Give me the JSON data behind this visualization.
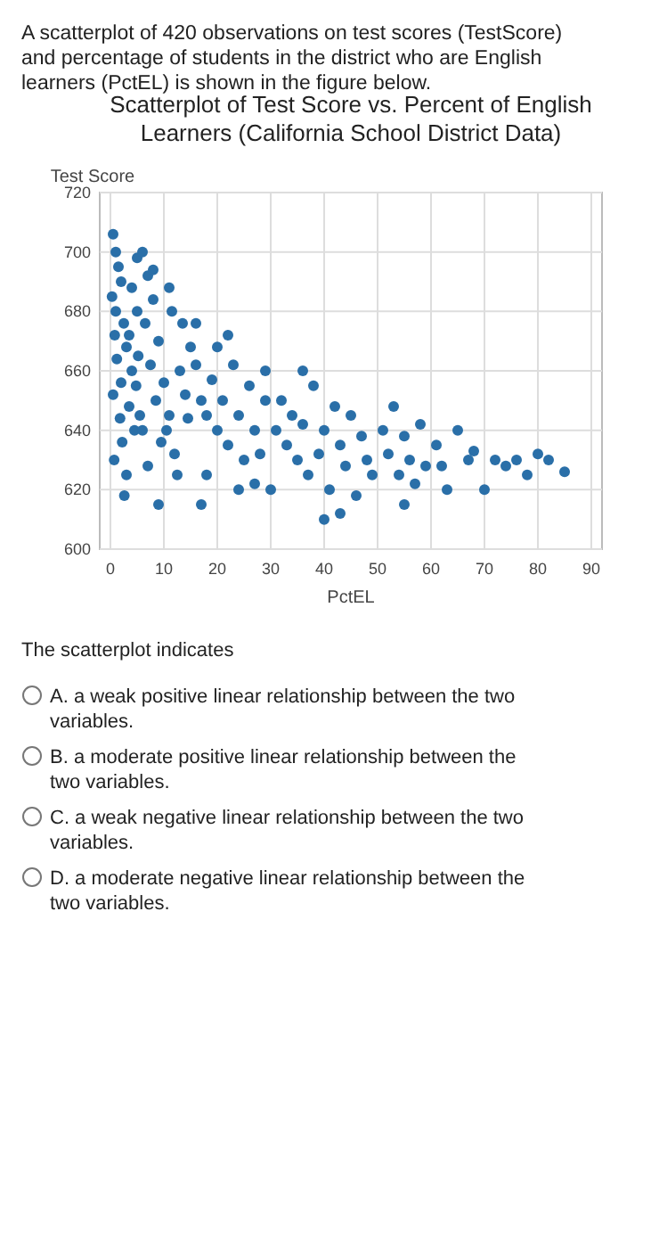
{
  "chart_data": {
    "type": "scatter",
    "title": "Scatterplot of Test Score vs. Percent of English Learners (California School District Data)",
    "xlabel": "PctEL",
    "ylabel": "Test Score",
    "annotations": [
      "A scatterplot of 420 observations on test scores (TestScore) and percentage of students in the district who are English learners (PctEL) is shown in the figure below.",
      "The scatterplot indicates",
      "A.  a weak positive linear relationship between the two variables.",
      "B.  a moderate positive linear relationship between the two variables.",
      "C.  a weak negative linear relationship between the two variables.",
      "D.  a moderate negative linear relationship between the two variables."
    ],
    "xlim": [
      -2,
      92
    ],
    "xticks": [
      0,
      10,
      20,
      30,
      40,
      50,
      60,
      70,
      80,
      90
    ],
    "ylim": [
      600,
      720
    ],
    "yticks": [
      600,
      620,
      640,
      660,
      680,
      700,
      720
    ],
    "grid": true,
    "marker": "circle",
    "series": [
      {
        "color": "#2a6fa8",
        "x": [
          0.5,
          1,
          1.5,
          2,
          0.3,
          1,
          2.5,
          0.8,
          3,
          1.2,
          4,
          2,
          0.5,
          3.5,
          1.8,
          4.5,
          2.2,
          0.7,
          3,
          5,
          4,
          5,
          3.5,
          5.2,
          4.8,
          5.5,
          2.6,
          6,
          7,
          8,
          6.5,
          9,
          7.5,
          10,
          8.5,
          11,
          6,
          9.5,
          12,
          7,
          13,
          14,
          10.5,
          12.5,
          14.5,
          8,
          11,
          15,
          13.5,
          9,
          11.5,
          16,
          17,
          18,
          19,
          20,
          21,
          22,
          23,
          24,
          25,
          26,
          27,
          28,
          29,
          20,
          18,
          24,
          27,
          16,
          22,
          29,
          17,
          31,
          32,
          33,
          34,
          35,
          36,
          37,
          38,
          39,
          40,
          41,
          42,
          43,
          44,
          45,
          46,
          47,
          48,
          49,
          36,
          43,
          30,
          40,
          51,
          52,
          53,
          54,
          55,
          56,
          57,
          58,
          59,
          55,
          61,
          62,
          63,
          65,
          67,
          68,
          70,
          72,
          74,
          76,
          78,
          80,
          82,
          85
        ],
        "values": [
          706,
          700,
          695,
          690,
          685,
          680,
          676,
          672,
          668,
          664,
          660,
          656,
          652,
          648,
          644,
          640,
          636,
          630,
          625,
          698,
          688,
          680,
          672,
          665,
          655,
          645,
          618,
          700,
          692,
          684,
          676,
          670,
          662,
          656,
          650,
          645,
          640,
          636,
          632,
          628,
          660,
          652,
          640,
          625,
          644,
          694,
          688,
          668,
          676,
          615,
          680,
          662,
          650,
          645,
          657,
          640,
          650,
          635,
          662,
          645,
          630,
          655,
          640,
          632,
          650,
          668,
          625,
          620,
          622,
          676,
          672,
          660,
          615,
          640,
          650,
          635,
          645,
          630,
          642,
          625,
          655,
          632,
          640,
          620,
          648,
          635,
          628,
          645,
          618,
          638,
          630,
          625,
          660,
          612,
          620,
          610,
          640,
          632,
          648,
          625,
          638,
          630,
          622,
          642,
          628,
          615,
          635,
          628,
          620,
          640,
          630,
          633,
          620,
          630,
          628,
          630,
          625,
          632,
          630,
          626
        ]
      }
    ]
  }
}
